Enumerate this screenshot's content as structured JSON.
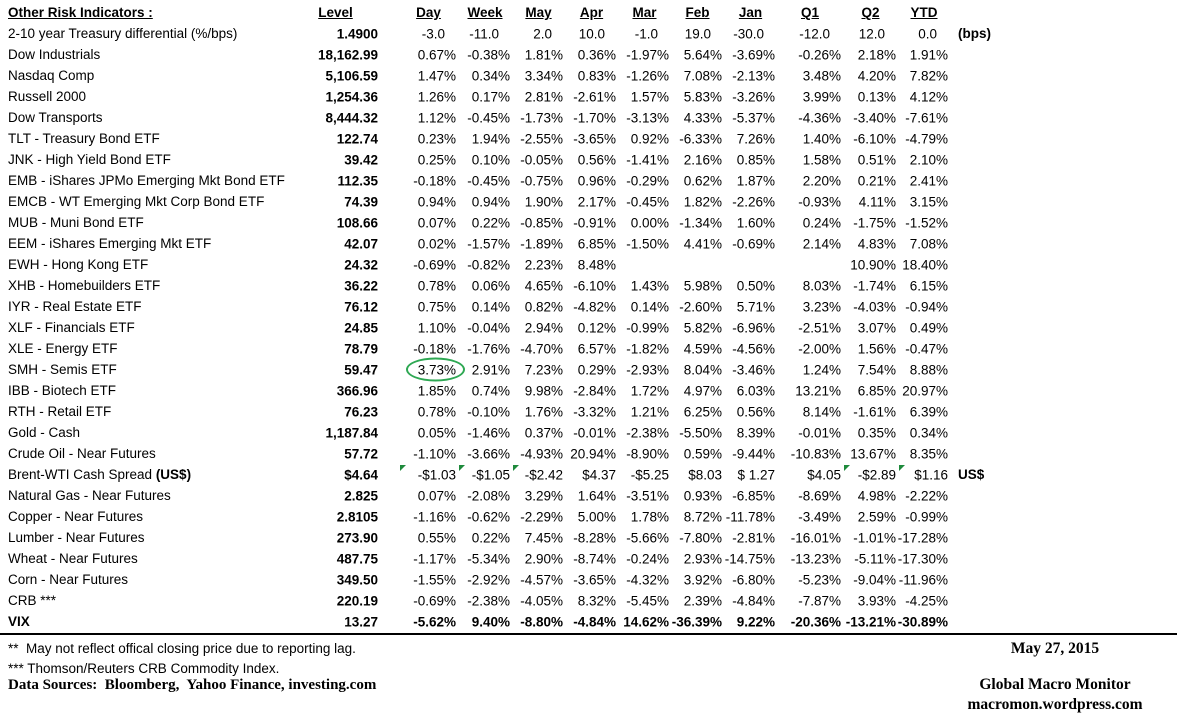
{
  "table": {
    "title": "Other Risk Indicators :",
    "columns": [
      "Level",
      "Day",
      "Week",
      "May",
      "Apr",
      "Mar",
      "Feb",
      "Jan",
      "Q1",
      "Q2",
      "YTD"
    ],
    "rows": [
      {
        "label": "2-10 year Treasury differential (%/bps)",
        "level": "1.4900",
        "values": [
          "-3.0",
          "-11.0",
          "2.0",
          "10.0",
          "-1.0",
          "19.0",
          "-30.0",
          "-12.0",
          "12.0",
          "0.0"
        ],
        "note": "(bps)",
        "style": "bps"
      },
      {
        "label": "Dow Industrials",
        "level": "18,162.99",
        "values": [
          "0.67%",
          "-0.38%",
          "1.81%",
          "0.36%",
          "-1.97%",
          "5.64%",
          "-3.69%",
          "-0.26%",
          "2.18%",
          "1.91%"
        ]
      },
      {
        "label": "Nasdaq Comp",
        "level": "5,106.59",
        "values": [
          "1.47%",
          "0.34%",
          "3.34%",
          "0.83%",
          "-1.26%",
          "7.08%",
          "-2.13%",
          "3.48%",
          "4.20%",
          "7.82%"
        ]
      },
      {
        "label": "Russell 2000",
        "level": "1,254.36",
        "values": [
          "1.26%",
          "0.17%",
          "2.81%",
          "-2.61%",
          "1.57%",
          "5.83%",
          "-3.26%",
          "3.99%",
          "0.13%",
          "4.12%"
        ]
      },
      {
        "label": "Dow Transports",
        "level": "8,444.32",
        "values": [
          "1.12%",
          "-0.45%",
          "-1.73%",
          "-1.70%",
          "-3.13%",
          "4.33%",
          "-5.37%",
          "-4.36%",
          "-3.40%",
          "-7.61%"
        ]
      },
      {
        "label": "TLT - Treasury Bond ETF",
        "level": "122.74",
        "values": [
          "0.23%",
          "1.94%",
          "-2.55%",
          "-3.65%",
          "0.92%",
          "-6.33%",
          "7.26%",
          "1.40%",
          "-6.10%",
          "-4.79%"
        ]
      },
      {
        "label": "JNK - High Yield Bond ETF",
        "level": "39.42",
        "values": [
          "0.25%",
          "0.10%",
          "-0.05%",
          "0.56%",
          "-1.41%",
          "2.16%",
          "0.85%",
          "1.58%",
          "0.51%",
          "2.10%"
        ]
      },
      {
        "label": "EMB - iShares JPMo Emerging Mkt Bond ETF",
        "level": "112.35",
        "values": [
          "-0.18%",
          "-0.45%",
          "-0.75%",
          "0.96%",
          "-0.29%",
          "0.62%",
          "1.87%",
          "2.20%",
          "0.21%",
          "2.41%"
        ]
      },
      {
        "label": "EMCB - WT Emerging Mkt Corp Bond ETF",
        "level": "74.39",
        "values": [
          "0.94%",
          "0.94%",
          "1.90%",
          "2.17%",
          "-0.45%",
          "1.82%",
          "-2.26%",
          "-0.93%",
          "4.11%",
          "3.15%"
        ]
      },
      {
        "label": "MUB - Muni Bond ETF",
        "level": "108.66",
        "values": [
          "0.07%",
          "0.22%",
          "-0.85%",
          "-0.91%",
          "0.00%",
          "-1.34%",
          "1.60%",
          "0.24%",
          "-1.75%",
          "-1.52%"
        ]
      },
      {
        "label": "EEM - iShares Emerging Mkt ETF",
        "level": "42.07",
        "values": [
          "0.02%",
          "-1.57%",
          "-1.89%",
          "6.85%",
          "-1.50%",
          "4.41%",
          "-0.69%",
          "2.14%",
          "4.83%",
          "7.08%"
        ]
      },
      {
        "label": "EWH - Hong Kong ETF",
        "level": "24.32",
        "values": [
          "-0.69%",
          "-0.82%",
          "2.23%",
          "8.48%",
          "",
          "",
          "",
          "",
          "10.90%",
          "18.40%"
        ]
      },
      {
        "label": "XHB - Homebuilders ETF",
        "level": "36.22",
        "values": [
          "0.78%",
          "0.06%",
          "4.65%",
          "-6.10%",
          "1.43%",
          "5.98%",
          "0.50%",
          "8.03%",
          "-1.74%",
          "6.15%"
        ]
      },
      {
        "label": "IYR - Real Estate ETF",
        "level": "76.12",
        "values": [
          "0.75%",
          "0.14%",
          "0.82%",
          "-4.82%",
          "0.14%",
          "-2.60%",
          "5.71%",
          "3.23%",
          "-4.03%",
          "-0.94%"
        ]
      },
      {
        "label": "XLF - Financials ETF",
        "level": "24.85",
        "values": [
          "1.10%",
          "-0.04%",
          "2.94%",
          "0.12%",
          "-0.99%",
          "5.82%",
          "-6.96%",
          "-2.51%",
          "3.07%",
          "0.49%"
        ]
      },
      {
        "label": "XLE - Energy ETF",
        "level": "78.79",
        "values": [
          "-0.18%",
          "-1.76%",
          "-4.70%",
          "6.57%",
          "-1.82%",
          "4.59%",
          "-4.56%",
          "-2.00%",
          "1.56%",
          "-0.47%"
        ]
      },
      {
        "label": "SMH - Semis ETF",
        "level": "59.47",
        "values": [
          "3.73%",
          "2.91%",
          "7.23%",
          "0.29%",
          "-2.93%",
          "8.04%",
          "-3.46%",
          "1.24%",
          "7.54%",
          "8.88%"
        ],
        "circle": "Day"
      },
      {
        "label": "IBB - Biotech ETF",
        "level": "366.96",
        "values": [
          "1.85%",
          "0.74%",
          "9.98%",
          "-2.84%",
          "1.72%",
          "4.97%",
          "6.03%",
          "13.21%",
          "6.85%",
          "20.97%"
        ]
      },
      {
        "label": "RTH - Retail ETF",
        "level": "76.23",
        "values": [
          "0.78%",
          "-0.10%",
          "1.76%",
          "-3.32%",
          "1.21%",
          "6.25%",
          "0.56%",
          "8.14%",
          "-1.61%",
          "6.39%"
        ]
      },
      {
        "label": "Gold - Cash",
        "level": "1,187.84",
        "values": [
          "0.05%",
          "-1.46%",
          "0.37%",
          "-0.01%",
          "-2.38%",
          "-5.50%",
          "8.39%",
          "-0.01%",
          "0.35%",
          "0.34%"
        ]
      },
      {
        "label": "Crude Oil - Near Futures",
        "level": "57.72",
        "values": [
          "-1.10%",
          "-3.66%",
          "-4.93%",
          "20.94%",
          "-8.90%",
          "0.59%",
          "-9.44%",
          "-10.83%",
          "13.67%",
          "8.35%"
        ]
      },
      {
        "label": "Brent-WTI Cash Spread ",
        "label_bold": "(US$)",
        "level": "$4.64",
        "values": [
          "-$1.03",
          "-$1.05",
          "-$2.42",
          "$4.37",
          "-$5.25",
          "$8.03",
          "$ 1.27",
          "$4.05",
          "-$2.89",
          "$1.16"
        ],
        "note": "US$",
        "flags": [
          "Day",
          "Week",
          "May",
          "Q2",
          "YTD"
        ]
      },
      {
        "label": "Natural Gas - Near Futures",
        "level": "2.825",
        "values": [
          "0.07%",
          "-2.08%",
          "3.29%",
          "1.64%",
          "-3.51%",
          "0.93%",
          "-6.85%",
          "-8.69%",
          "4.98%",
          "-2.22%"
        ]
      },
      {
        "label": "Copper - Near Futures",
        "level": "2.8105",
        "values": [
          "-1.16%",
          "-0.62%",
          "-2.29%",
          "5.00%",
          "1.78%",
          "8.72%",
          "-11.78%",
          "-3.49%",
          "2.59%",
          "-0.99%"
        ]
      },
      {
        "label": "Lumber - Near Futures",
        "level": "273.90",
        "values": [
          "0.55%",
          "0.22%",
          "7.45%",
          "-8.28%",
          "-5.66%",
          "-7.80%",
          "-2.81%",
          "-16.01%",
          "-1.01%",
          "-17.28%"
        ]
      },
      {
        "label": "Wheat - Near Futures",
        "level": "487.75",
        "values": [
          "-1.17%",
          "-5.34%",
          "2.90%",
          "-8.74%",
          "-0.24%",
          "2.93%",
          "-14.75%",
          "-13.23%",
          "-5.11%",
          "-17.30%"
        ]
      },
      {
        "label": "Corn - Near Futures",
        "level": "349.50",
        "values": [
          "-1.55%",
          "-2.92%",
          "-4.57%",
          "-3.65%",
          "-4.32%",
          "3.92%",
          "-6.80%",
          "-5.23%",
          "-9.04%",
          "-11.96%"
        ]
      },
      {
        "label": "CRB ***",
        "level": "220.19",
        "values": [
          "-0.69%",
          "-2.38%",
          "-4.05%",
          "8.32%",
          "-5.45%",
          "2.39%",
          "-4.84%",
          "-7.87%",
          "3.93%",
          "-4.25%"
        ]
      },
      {
        "label": "VIX",
        "level": "13.27",
        "values": [
          "-5.62%",
          "9.40%",
          "-8.80%",
          "-4.84%",
          "14.62%",
          "-36.39%",
          "9.22%",
          "-20.36%",
          "-13.21%",
          "-30.89%"
        ],
        "style": "bold"
      }
    ]
  },
  "annotations": {
    "circle_color": "#2ea853",
    "flag_color": "#1e8a3c"
  },
  "footnotes": [
    "**  May not reflect offical closing price due to reporting lag.",
    "*** Thomson/Reuters CRB Commodity Index.",
    "Data Sources:  Bloomberg,  Yahoo Finance, investing.com"
  ],
  "footer_right": {
    "date": "May 27, 2015",
    "brand": "Global Macro Monitor",
    "url": "macromon.wordpress.com"
  }
}
